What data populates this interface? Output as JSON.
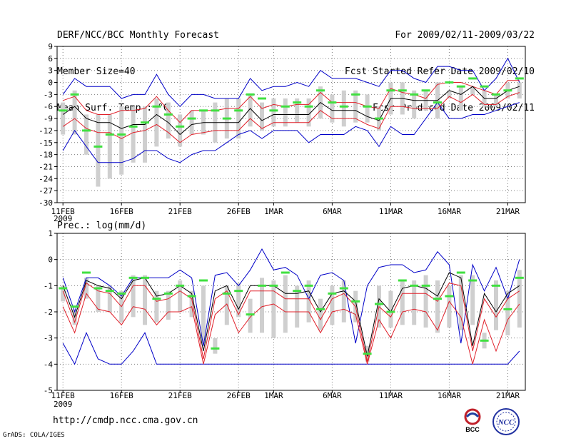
{
  "header": {
    "title": "DERF/NCC/BCC Monthly Forecast",
    "member_size": "Member Size=40",
    "variable": "Mean Surf. Temp.: °C",
    "period": "For 2009/02/11-2009/03/22",
    "started": "Fcst Started Refer Date 2009/02/10",
    "produced": "Fcst Produced Date 2009/02/11"
  },
  "footer": {
    "url": "http://cmdp.ncc.cma.gov.cn",
    "grads": "GrADS: COLA/IGES"
  },
  "logos": {
    "bcc_text": "BCC",
    "ncc_text": "NCC"
  },
  "colors": {
    "mean": "#000000",
    "inner": "#e0202a",
    "outer": "#0000c8",
    "bar": "#cfcfcf",
    "obs": "#40e040",
    "grid": "#7f7f7f"
  },
  "chart_data": [
    {
      "type": "line",
      "title": "Mean Surf. Temp.: °C",
      "ylim": [
        -30,
        9
      ],
      "yticks": [
        -30,
        -27,
        -24,
        -21,
        -18,
        -15,
        -12,
        -9,
        -6,
        -3,
        0,
        3,
        6,
        9
      ],
      "ytick_labels": [
        "-30",
        "-27",
        "-24",
        "-21",
        "-18",
        "-15",
        "-12",
        "-9",
        "-6",
        "-3",
        "0",
        "3",
        "6",
        "9"
      ],
      "x": [
        1,
        2,
        3,
        4,
        5,
        6,
        7,
        8,
        9,
        10,
        11,
        12,
        13,
        14,
        15,
        16,
        17,
        18,
        19,
        20,
        21,
        22,
        23,
        24,
        25,
        26,
        27,
        28,
        29,
        30,
        31,
        32,
        33,
        34,
        35,
        36,
        37,
        38,
        39,
        40
      ],
      "xtick_positions": [
        1,
        6,
        11,
        16,
        19,
        24,
        29,
        34,
        39
      ],
      "xtick_labels": [
        "11FEB",
        "16FEB",
        "21FEB",
        "26FEB",
        "1MAR",
        "6MAR",
        "11MAR",
        "16MAR",
        "21MAR"
      ],
      "xtick_year": "2009",
      "series": [
        {
          "name": "max",
          "values": [
            -3,
            1,
            -1,
            -1,
            -1,
            -4,
            -3,
            -3,
            2,
            -3,
            -6,
            -3,
            -3,
            -4,
            -4,
            -4,
            1,
            -2,
            -1,
            -1,
            0,
            -1,
            3,
            1,
            1,
            1,
            0,
            -1,
            3,
            3,
            1,
            0,
            4,
            4,
            3,
            3,
            -2,
            1,
            6,
            0
          ]
        },
        {
          "name": "upper",
          "values": [
            -4.5,
            -3.5,
            -7,
            -8,
            -8,
            -7,
            -7,
            -6.5,
            -3.5,
            -7,
            -10,
            -7,
            -7,
            -7,
            -6.5,
            -6.5,
            -3.5,
            -6.5,
            -5.5,
            -6,
            -5.5,
            -5.5,
            -2.5,
            -5,
            -5,
            -5,
            -6,
            -6.5,
            -1.5,
            -2.5,
            -3,
            -4,
            -0.5,
            0,
            0,
            -1,
            -2,
            -3,
            0.5,
            0.5
          ]
        },
        {
          "name": "mean",
          "values": [
            -8,
            -6,
            -9,
            -10,
            -10,
            -11.5,
            -10.5,
            -10.5,
            -8,
            -10,
            -13,
            -10.5,
            -10,
            -10,
            -10,
            -10,
            -6.5,
            -9.5,
            -8,
            -8,
            -8,
            -8,
            -5,
            -7,
            -7,
            -7,
            -8.5,
            -9.5,
            -4,
            -4,
            -4.5,
            -4.5,
            -4.5,
            -2,
            -3,
            -1,
            -4,
            -4,
            -2,
            -1
          ]
        },
        {
          "name": "lower",
          "values": [
            -11,
            -9,
            -11.5,
            -12.5,
            -12.5,
            -14,
            -12.5,
            -12,
            -10.5,
            -12.5,
            -15,
            -13,
            -12.5,
            -12,
            -12,
            -12,
            -9,
            -11.5,
            -10,
            -10,
            -10,
            -10,
            -7,
            -9,
            -9,
            -9,
            -10.5,
            -11.5,
            -6,
            -6,
            -6.5,
            -6.5,
            -6.5,
            -3.5,
            -5,
            -3,
            -5.5,
            -5.5,
            -3.5,
            -2.5
          ]
        },
        {
          "name": "min",
          "values": [
            -17,
            -12,
            -16,
            -20,
            -20,
            -20,
            -19,
            -17,
            -17,
            -19,
            -20,
            -18,
            -17,
            -17,
            -15,
            -13,
            -12,
            -14,
            -12,
            -12,
            -12,
            -15,
            -13,
            -13,
            -13,
            -11,
            -12,
            -16,
            -11,
            -13,
            -13,
            -9,
            -5,
            -9,
            -9,
            -8,
            -8,
            -7,
            -6,
            -5
          ]
        },
        {
          "name": "obs",
          "values": [
            -7,
            -3,
            -12,
            -16,
            -13,
            -13,
            -11,
            -10,
            -6,
            -8,
            -11,
            -9,
            -7,
            -7,
            -9,
            -7,
            -3,
            -4,
            -7,
            -6,
            -5,
            -6,
            -2,
            -5,
            -6,
            -3,
            -6,
            -9,
            -2,
            -2,
            -3,
            -2,
            -5,
            0,
            -1,
            1,
            -1,
            -3,
            -2,
            1
          ]
        },
        {
          "name": "bar_top",
          "values": [
            -5,
            -2,
            -8,
            -8,
            -8,
            -6,
            -6,
            -6,
            -4,
            -5,
            -8,
            -7,
            -7,
            -5,
            -4,
            -4,
            -3,
            -5,
            -4,
            -4,
            -4,
            -4,
            -1,
            -3,
            -2,
            -2,
            -3,
            -6,
            0,
            0,
            -2,
            -2,
            0,
            -2,
            -1,
            -1,
            -2,
            -3,
            0,
            0
          ]
        },
        {
          "name": "bar_bottom",
          "values": [
            -13,
            -13,
            -18,
            -26,
            -24,
            -23,
            -20,
            -20,
            -16,
            -14,
            -16,
            -13,
            -13,
            -15,
            -14,
            -14,
            -11,
            -12,
            -11,
            -11,
            -10,
            -11,
            -9,
            -10,
            -11,
            -10,
            -10,
            -12,
            -8,
            -8,
            -9,
            -7,
            -9,
            -4,
            -7,
            -3,
            -6,
            -6,
            -4,
            -4
          ]
        }
      ]
    },
    {
      "type": "line",
      "title": "Prec.: log(mm/d)",
      "ylim": [
        -5,
        1
      ],
      "yticks": [
        -5,
        -4,
        -3,
        -2,
        -1,
        0,
        1
      ],
      "ytick_labels": [
        "-5",
        "-4",
        "-3",
        "-2",
        "-1",
        "0",
        "1"
      ],
      "x": [
        1,
        2,
        3,
        4,
        5,
        6,
        7,
        8,
        9,
        10,
        11,
        12,
        13,
        14,
        15,
        16,
        17,
        18,
        19,
        20,
        21,
        22,
        23,
        24,
        25,
        26,
        27,
        28,
        29,
        30,
        31,
        32,
        33,
        34,
        35,
        36,
        37,
        38,
        39,
        40
      ],
      "xtick_positions": [
        1,
        6,
        11,
        16,
        19,
        24,
        29,
        34,
        39
      ],
      "xtick_labels": [
        "11FEB",
        "16FEB",
        "21FEB",
        "26FEB",
        "1MAR",
        "6MAR",
        "11MAR",
        "16MAR",
        "21MAR"
      ],
      "xtick_year": "2009",
      "series": [
        {
          "name": "max",
          "values": [
            -0.7,
            -2,
            -0.7,
            -0.7,
            -1,
            -1.4,
            -0.7,
            -0.7,
            -0.7,
            -0.7,
            -0.4,
            -0.7,
            -3.3,
            -0.6,
            -0.5,
            -1,
            -0.4,
            0.4,
            -0.4,
            -0.3,
            -0.6,
            -1.5,
            -0.6,
            -0.5,
            -0.8,
            -3.2,
            -1,
            -0.3,
            -0.2,
            -0.2,
            -0.5,
            -0.4,
            0.3,
            -0.2,
            -3.2,
            -0.2,
            -1.2,
            -0.3,
            -1.5,
            0
          ]
        },
        {
          "name": "mean",
          "values": [
            -1,
            -2.2,
            -0.8,
            -1,
            -1.1,
            -1.5,
            -0.8,
            -0.7,
            -1.4,
            -1.3,
            -1,
            -1.3,
            -3.5,
            -1.2,
            -1,
            -1.9,
            -1,
            -1,
            -1,
            -1.3,
            -1.3,
            -1.2,
            -2,
            -1.3,
            -1.2,
            -1.6,
            -3.7,
            -1.5,
            -2,
            -1.1,
            -1,
            -1.1,
            -1.4,
            -0.5,
            -0.7,
            -3.3,
            -1.3,
            -2,
            -1.3,
            -1
          ]
        },
        {
          "name": "upper",
          "values": [
            -1.2,
            -2.4,
            -0.9,
            -1.2,
            -1.3,
            -1.8,
            -1,
            -1,
            -1.6,
            -1.5,
            -1.2,
            -1.5,
            -3.8,
            -1.5,
            -1.2,
            -2.1,
            -1.2,
            -1.2,
            -1.2,
            -1.5,
            -1.5,
            -1.5,
            -2.3,
            -1.5,
            -1.3,
            -1.8,
            -3.9,
            -1.8,
            -2.2,
            -1.3,
            -1.3,
            -1.3,
            -1.6,
            -0.9,
            -1,
            -3.5,
            -1.5,
            -2.2,
            -1.5,
            -1.2
          ]
        },
        {
          "name": "lower",
          "values": [
            -1.8,
            -2.8,
            -1.3,
            -1.9,
            -2,
            -2.5,
            -1.8,
            -1.9,
            -2.5,
            -2,
            -2,
            -1.8,
            -4,
            -2.1,
            -1.7,
            -2.8,
            -2.2,
            -1.8,
            -1.7,
            -2,
            -2,
            -2,
            -2.8,
            -2,
            -1.9,
            -2.1,
            -4,
            -2.3,
            -3,
            -2,
            -1.9,
            -2,
            -2.7,
            -1.6,
            -2.2,
            -4,
            -2.3,
            -3.5,
            -2.3,
            -1.7
          ]
        },
        {
          "name": "min",
          "values": [
            -3.2,
            -4,
            -2.8,
            -3.8,
            -4,
            -4,
            -3.5,
            -2.8,
            -4,
            -4,
            -4,
            -4,
            -4,
            -4,
            -4,
            -4,
            -4,
            -4,
            -4,
            -4,
            -4,
            -4,
            -4,
            -4,
            -4,
            -4,
            -4,
            -4,
            -4,
            -4,
            -4,
            -4,
            -4,
            -4,
            -4,
            -4,
            -4,
            -4,
            -4,
            -3.5
          ]
        },
        {
          "name": "obs",
          "values": [
            -1.1,
            -1.8,
            -0.5,
            -1.1,
            -1.2,
            -1.3,
            -0.7,
            -0.7,
            -1.5,
            -1.3,
            -1,
            -1.4,
            -0.8,
            -3.4,
            -1.3,
            -1.2,
            -2.1,
            -1,
            -1,
            -0.5,
            -1.2,
            -1,
            -1.9,
            -1.3,
            -1.1,
            -1.6,
            -3.6,
            -1.7,
            -2,
            -0.8,
            -1,
            -1,
            -1.5,
            -1.4,
            -0.5,
            -0.8,
            -3.1,
            -1,
            -1.9,
            -0.7
          ]
        },
        {
          "name": "bar_top",
          "values": [
            -1,
            -1.9,
            -0.7,
            -1,
            -1,
            -1.2,
            -0.6,
            -0.6,
            -1.2,
            -1.2,
            -0.8,
            -1.2,
            -1,
            -3,
            -1,
            -0.9,
            -1.5,
            -0.7,
            -0.8,
            -0.6,
            -1,
            -0.8,
            -1.5,
            -1,
            -0.8,
            -1.2,
            -3.3,
            -1,
            -1.2,
            -0.8,
            -0.8,
            -0.6,
            -0.8,
            -1,
            -0.6,
            -0.6,
            -2.8,
            -0.8,
            -1.2,
            -0.4
          ]
        },
        {
          "name": "bar_bottom",
          "values": [
            -1.6,
            -2.5,
            -1.5,
            -2,
            -2,
            -2.4,
            -2.2,
            -2.5,
            -2.4,
            -2.3,
            -2,
            -2.2,
            -3.2,
            -3.6,
            -2.5,
            -2.2,
            -2.8,
            -2.8,
            -3,
            -2.8,
            -2.6,
            -2.4,
            -2.7,
            -2.5,
            -2.4,
            -2.4,
            -3.9,
            -2.6,
            -2.6,
            -2.5,
            -2.5,
            -2.6,
            -2.8,
            -2.6,
            -2.7,
            -2.5,
            -3.4,
            -2.7,
            -2.9,
            -2.6
          ]
        }
      ]
    }
  ]
}
